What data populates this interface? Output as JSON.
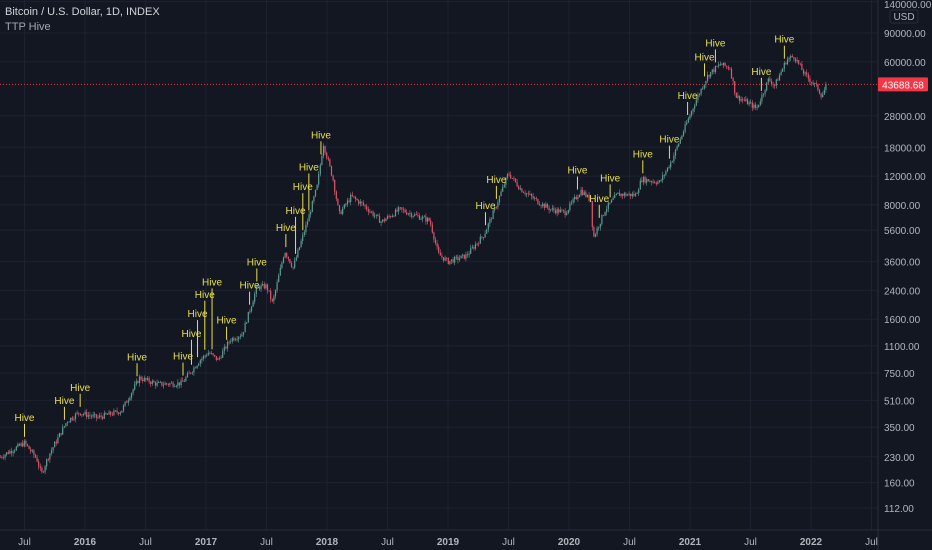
{
  "header": {
    "symbol_title": "Bitcoin / U.S. Dollar, 1D, INDEX",
    "indicator": "TTP Hive"
  },
  "price_axis": {
    "currency": "USD",
    "last_price": "43688.68"
  },
  "colors": {
    "background": "#131722",
    "up": "#5f9e93",
    "down": "#e0566a",
    "signal_label": "#e8e04a",
    "last_price": "#f23645",
    "grid": "#1e2230"
  },
  "chart_data": {
    "type": "candlestick",
    "title": "Bitcoin / U.S. Dollar, 1D, INDEX",
    "scale": "log",
    "ylim": [
      100,
      150000
    ],
    "xlim": [
      2015.3,
      2022.45
    ],
    "y_ticks": [
      {
        "value": 140000,
        "label": "140000.00"
      },
      {
        "value": 90000,
        "label": "90000.00"
      },
      {
        "value": 60000,
        "label": "60000.00"
      },
      {
        "value": 28000,
        "label": "28000.00"
      },
      {
        "value": 18000,
        "label": "18000.00"
      },
      {
        "value": 12000,
        "label": "12000.00"
      },
      {
        "value": 8000,
        "label": "8000.00"
      },
      {
        "value": 5600,
        "label": "5600.00"
      },
      {
        "value": 3600,
        "label": "3600.00"
      },
      {
        "value": 2400,
        "label": "2400.00"
      },
      {
        "value": 1600,
        "label": "1600.00"
      },
      {
        "value": 1100,
        "label": "1100.00"
      },
      {
        "value": 750,
        "label": "750.00"
      },
      {
        "value": 510,
        "label": "510.00"
      },
      {
        "value": 350,
        "label": "350.00"
      },
      {
        "value": 230,
        "label": "230.00"
      },
      {
        "value": 160,
        "label": "160.00"
      },
      {
        "value": 112,
        "label": "112.00"
      }
    ],
    "x_ticks": [
      {
        "value": 2015.5,
        "label": "Jul",
        "bold": false
      },
      {
        "value": 2016.0,
        "label": "2016",
        "bold": true
      },
      {
        "value": 2016.5,
        "label": "Jul",
        "bold": false
      },
      {
        "value": 2017.0,
        "label": "2017",
        "bold": true
      },
      {
        "value": 2017.5,
        "label": "Jul",
        "bold": false
      },
      {
        "value": 2018.0,
        "label": "2018",
        "bold": true
      },
      {
        "value": 2018.5,
        "label": "Jul",
        "bold": false
      },
      {
        "value": 2019.0,
        "label": "2019",
        "bold": true
      },
      {
        "value": 2019.5,
        "label": "Jul",
        "bold": false
      },
      {
        "value": 2020.0,
        "label": "2020",
        "bold": true
      },
      {
        "value": 2020.5,
        "label": "Jul",
        "bold": false
      },
      {
        "value": 2021.0,
        "label": "2021",
        "bold": true
      },
      {
        "value": 2021.5,
        "label": "Jul",
        "bold": false
      },
      {
        "value": 2022.0,
        "label": "2022",
        "bold": true
      },
      {
        "value": 2022.5,
        "label": "Jul",
        "bold": false
      }
    ],
    "price_path": [
      [
        2015.3,
        230
      ],
      [
        2015.5,
        280
      ],
      [
        2015.6,
        225
      ],
      [
        2015.64,
        180
      ],
      [
        2015.7,
        235
      ],
      [
        2015.85,
        380
      ],
      [
        2015.95,
        430
      ],
      [
        2016.1,
        400
      ],
      [
        2016.3,
        440
      ],
      [
        2016.45,
        700
      ],
      [
        2016.6,
        640
      ],
      [
        2016.8,
        650
      ],
      [
        2016.95,
        900
      ],
      [
        2017.02,
        1000
      ],
      [
        2017.1,
        900
      ],
      [
        2017.2,
        1200
      ],
      [
        2017.3,
        1300
      ],
      [
        2017.42,
        2500
      ],
      [
        2017.5,
        2550
      ],
      [
        2017.55,
        2000
      ],
      [
        2017.65,
        4200
      ],
      [
        2017.72,
        3300
      ],
      [
        2017.85,
        6800
      ],
      [
        2017.92,
        10500
      ],
      [
        2017.97,
        19000
      ],
      [
        2018.05,
        11500
      ],
      [
        2018.1,
        7000
      ],
      [
        2018.2,
        9000
      ],
      [
        2018.3,
        8000
      ],
      [
        2018.45,
        6300
      ],
      [
        2018.6,
        7500
      ],
      [
        2018.85,
        6400
      ],
      [
        2018.92,
        4000
      ],
      [
        2019.0,
        3600
      ],
      [
        2019.15,
        3900
      ],
      [
        2019.3,
        5300
      ],
      [
        2019.4,
        8000
      ],
      [
        2019.5,
        12500
      ],
      [
        2019.6,
        10000
      ],
      [
        2019.75,
        8300
      ],
      [
        2019.85,
        7500
      ],
      [
        2019.97,
        7200
      ],
      [
        2020.1,
        9800
      ],
      [
        2020.18,
        8500
      ],
      [
        2020.2,
        5000
      ],
      [
        2020.3,
        7500
      ],
      [
        2020.4,
        9300
      ],
      [
        2020.55,
        9200
      ],
      [
        2020.6,
        11500
      ],
      [
        2020.75,
        11000
      ],
      [
        2020.85,
        15000
      ],
      [
        2020.95,
        23000
      ],
      [
        2021.05,
        35000
      ],
      [
        2021.15,
        50000
      ],
      [
        2021.25,
        58000
      ],
      [
        2021.33,
        55000
      ],
      [
        2021.38,
        37000
      ],
      [
        2021.5,
        33000
      ],
      [
        2021.55,
        31000
      ],
      [
        2021.65,
        47000
      ],
      [
        2021.7,
        43000
      ],
      [
        2021.8,
        62000
      ],
      [
        2021.86,
        65000
      ],
      [
        2021.95,
        50000
      ],
      [
        2022.05,
        42000
      ],
      [
        2022.09,
        37000
      ],
      [
        2022.13,
        43688
      ]
    ],
    "annotations": {
      "label": "Hive",
      "dates": [
        2015.5,
        2015.83,
        2015.96,
        2016.43,
        2016.81,
        2016.88,
        2016.93,
        2016.99,
        2017.05,
        2017.17,
        2017.36,
        2017.42,
        2017.66,
        2017.74,
        2017.8,
        2017.85,
        2017.95,
        2019.31,
        2019.4,
        2020.07,
        2020.25,
        2020.34,
        2020.61,
        2020.83,
        2020.98,
        2021.12,
        2021.21,
        2021.59,
        2021.78
      ]
    }
  }
}
